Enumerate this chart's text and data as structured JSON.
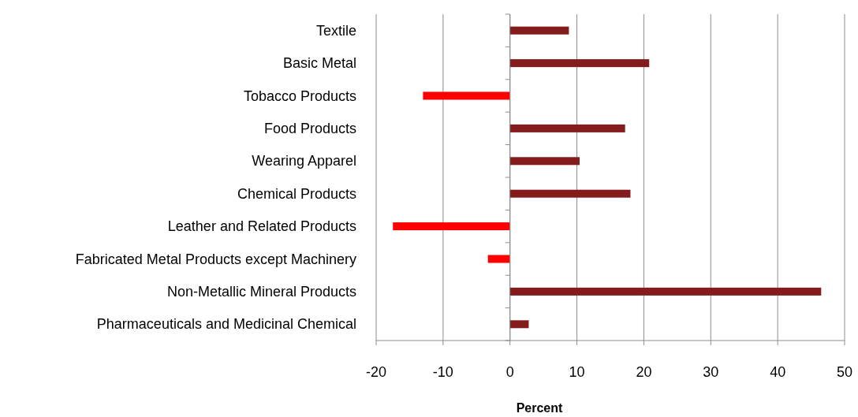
{
  "chart_data": {
    "type": "bar",
    "orientation": "horizontal",
    "xlabel": "Percent",
    "categories": [
      "Textile",
      "Basic Metal",
      "Tobacco Products",
      "Food Products",
      "Wearing Apparel",
      "Chemical Products",
      "Leather and Related Products",
      "Fabricated Metal Products except Machinery",
      "Non-Metallic Mineral Products",
      "Pharmaceuticals and Medicinal Chemical"
    ],
    "values": [
      8.8,
      20.8,
      -13,
      17.2,
      10.4,
      18,
      -17.5,
      -3.3,
      46.5,
      2.8
    ],
    "colors": [
      "#841c1c",
      "#841c1c",
      "#ff0000",
      "#841c1c",
      "#841c1c",
      "#841c1c",
      "#ff0000",
      "#ff0000",
      "#841c1c",
      "#841c1c"
    ],
    "xlim": [
      -20,
      50
    ],
    "xticks": [
      -20,
      -10,
      0,
      10,
      20,
      30,
      40,
      50
    ],
    "grid": "x"
  }
}
